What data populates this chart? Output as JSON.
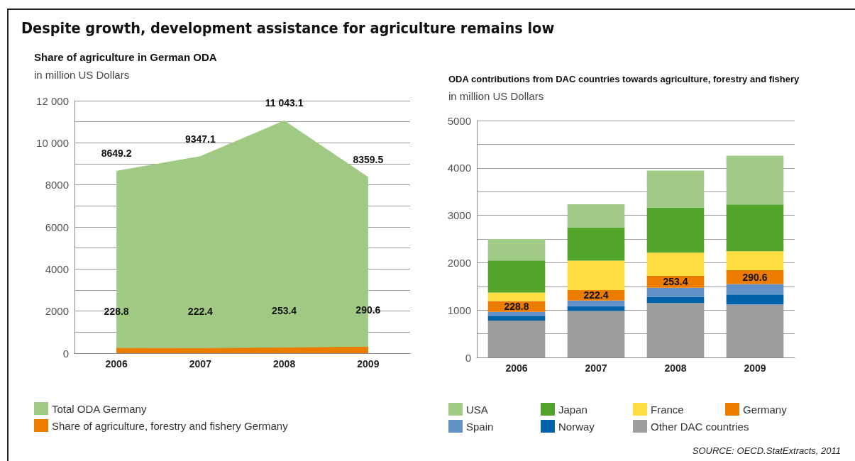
{
  "chart_data": [
    {
      "type": "area",
      "title": "Share of agriculture in German ODA",
      "subtitle": "in million US Dollars",
      "annotations": [
        "Despite growth, development assistance for agriculture remains low"
      ],
      "categories": [
        "2006",
        "2007",
        "2008",
        "2009"
      ],
      "series": [
        {
          "name": "Total ODA Germany",
          "color": "#a0c984",
          "values": [
            8649.2,
            9347.1,
            11043.1,
            8359.5
          ],
          "value_labels": [
            "8649.2",
            "9347.1",
            "11 043.1",
            "8359.5"
          ]
        },
        {
          "name": "Share of agriculture, forestry and fishery Germany",
          "color": "#ec7c00",
          "values": [
            228.8,
            222.4,
            253.4,
            290.6
          ]
        }
      ],
      "ylim": [
        0,
        12000
      ],
      "yticks": [
        0,
        {
          "value": 1000,
          "label": null
        },
        2000,
        {
          "value": 3000,
          "label": null
        },
        4000,
        {
          "value": 5000,
          "label": null
        },
        6000,
        {
          "value": 7000,
          "label": null
        },
        8000,
        {
          "value": 9000,
          "label": null
        },
        {
          "value": 10000,
          "label": "10 000"
        },
        {
          "value": 11000,
          "label": null
        },
        {
          "value": 12000,
          "label": "12 000"
        }
      ],
      "grid": "y",
      "legend": "bottom",
      "data_labels": true,
      "marker": "none"
    },
    {
      "type": "bar",
      "stacked": true,
      "title": "ODA contributions from DAC countries towards agriculture, forestry and fishery",
      "subtitle": "in million US Dollars",
      "annotations": [
        "SOURCE: OECD.StatExtracts, 2011"
      ],
      "categories": [
        "2006",
        "2007",
        "2008",
        "2009"
      ],
      "series": [
        {
          "name": "Other DAC countries",
          "color": "#9d9e9f",
          "values": [
            780,
            980,
            1150,
            1120
          ]
        },
        {
          "name": "Norway",
          "color": "#0062a8",
          "values": [
            100,
            100,
            130,
            210
          ]
        },
        {
          "name": "Spain",
          "color": "#6193c9",
          "values": [
            80,
            120,
            190,
            220
          ]
        },
        {
          "name": "Germany",
          "color": "#ec7c00",
          "values": [
            228.8,
            222.4,
            253.4,
            290.6
          ],
          "value_labels": [
            "228.8",
            "222.4",
            "253.4",
            "290.6"
          ]
        },
        {
          "name": "France",
          "color": "#fddd3f",
          "values": [
            180,
            620,
            490,
            400
          ]
        },
        {
          "name": "Japan",
          "color": "#53a42a",
          "values": [
            680,
            700,
            950,
            990
          ]
        },
        {
          "name": "USA",
          "color": "#a1cb86",
          "values": [
            450,
            490,
            780,
            1030
          ]
        }
      ],
      "ylim": [
        0,
        5000
      ],
      "yticks": [
        0,
        {
          "value": 500,
          "label": null
        },
        1000,
        {
          "value": 1500,
          "label": null
        },
        2000,
        {
          "value": 2500,
          "label": null
        },
        3000,
        {
          "value": 3500,
          "label": null
        },
        4000,
        {
          "value": 4500,
          "label": null
        },
        5000
      ],
      "grid": "y",
      "legend": "bottom"
    }
  ]
}
